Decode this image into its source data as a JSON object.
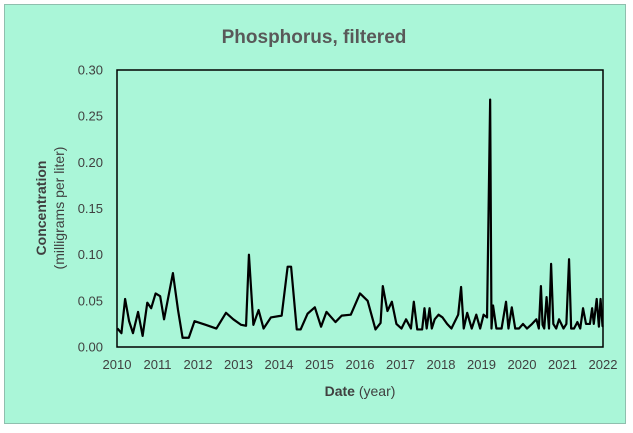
{
  "chart_data": {
    "type": "line",
    "title": "Phosphorus, filtered",
    "xlabel_bold": "Date",
    "xlabel_rest": " (year)",
    "ylabel_line1": "Concentration",
    "ylabel_line2": "(milligrams per liter)",
    "xlim": [
      2010,
      2022
    ],
    "ylim": [
      0,
      0.3
    ],
    "x_ticks": [
      "2010",
      "2011",
      "2012",
      "2013",
      "2014",
      "2015",
      "2016",
      "2017",
      "2018",
      "2019",
      "2020",
      "2021",
      "2022"
    ],
    "y_ticks": [
      "0.00",
      "0.05",
      "0.10",
      "0.15",
      "0.20",
      "0.25",
      "0.30"
    ],
    "grid": false,
    "colors": {
      "background": "#aaf6d8",
      "line": "#000000"
    },
    "series": [
      {
        "x": [
          "2010-01-05",
          "2010-02-10",
          "2010-03-15",
          "2010-04-20",
          "2010-05-25",
          "2010-07-10",
          "2010-08-20",
          "2010-10-01",
          "2010-11-05",
          "2010-12-15",
          "2011-01-25",
          "2011-03-01",
          "2011-05-20",
          "2011-07-05",
          "2011-08-15",
          "2011-10-10",
          "2011-12-01",
          "2012-03-10",
          "2012-06-15",
          "2012-09-10",
          "2012-11-15",
          "2013-01-25",
          "2013-03-10",
          "2013-04-05",
          "2013-05-15",
          "2013-07-01",
          "2013-08-15",
          "2013-10-20",
          "2014-01-25",
          "2014-03-20",
          "2014-04-20",
          "2014-06-10",
          "2014-07-15",
          "2014-09-15",
          "2014-11-20",
          "2015-01-15",
          "2015-03-05",
          "2015-05-25",
          "2015-07-20",
          "2015-10-10",
          "2016-01-01",
          "2016-03-10",
          "2016-05-20",
          "2016-07-05",
          "2016-07-25",
          "2016-09-05",
          "2016-10-15",
          "2016-11-25",
          "2017-01-10",
          "2017-02-20",
          "2017-04-05",
          "2017-05-01",
          "2017-06-01",
          "2017-07-15",
          "2017-08-05",
          "2017-08-25",
          "2017-09-20",
          "2017-10-10",
          "2017-11-05",
          "2017-12-10",
          "2018-01-15",
          "2018-02-25",
          "2018-04-05",
          "2018-06-05",
          "2018-07-01",
          "2018-07-25",
          "2018-08-25",
          "2018-10-05",
          "2018-11-15",
          "2018-12-20",
          "2019-01-20",
          "2019-02-20",
          "2019-03-20",
          "2019-04-01",
          "2019-04-15",
          "2019-05-15",
          "2019-07-01",
          "2019-08-10",
          "2019-09-01",
          "2019-10-01",
          "2019-11-01",
          "2019-12-05",
          "2020-01-10",
          "2020-02-15",
          "2020-04-01",
          "2020-05-10",
          "2020-06-01",
          "2020-06-20",
          "2020-07-05",
          "2020-07-20",
          "2020-08-10",
          "2020-09-01",
          "2020-09-20",
          "2020-10-10",
          "2020-11-05",
          "2020-12-01",
          "2021-01-10",
          "2021-02-05",
          "2021-03-01",
          "2021-03-20",
          "2021-04-15",
          "2021-05-15",
          "2021-06-10",
          "2021-07-05",
          "2021-08-01",
          "2021-09-05",
          "2021-09-25",
          "2021-10-10",
          "2021-11-05",
          "2021-11-25",
          "2021-12-10",
          "2021-12-28"
        ],
        "values": [
          0.02,
          0.015,
          0.052,
          0.028,
          0.015,
          0.038,
          0.012,
          0.048,
          0.042,
          0.058,
          0.055,
          0.03,
          0.08,
          0.04,
          0.01,
          0.01,
          0.028,
          0.024,
          0.02,
          0.037,
          0.03,
          0.024,
          0.023,
          0.1,
          0.024,
          0.04,
          0.02,
          0.032,
          0.034,
          0.087,
          0.087,
          0.019,
          0.019,
          0.036,
          0.043,
          0.022,
          0.038,
          0.027,
          0.034,
          0.035,
          0.058,
          0.05,
          0.019,
          0.026,
          0.066,
          0.039,
          0.049,
          0.025,
          0.02,
          0.03,
          0.02,
          0.049,
          0.019,
          0.019,
          0.042,
          0.02,
          0.042,
          0.02,
          0.03,
          0.035,
          0.032,
          0.025,
          0.02,
          0.035,
          0.065,
          0.02,
          0.037,
          0.02,
          0.035,
          0.02,
          0.035,
          0.032,
          0.268,
          0.02,
          0.045,
          0.02,
          0.02,
          0.049,
          0.02,
          0.043,
          0.02,
          0.02,
          0.025,
          0.02,
          0.025,
          0.03,
          0.02,
          0.066,
          0.024,
          0.02,
          0.054,
          0.02,
          0.09,
          0.025,
          0.02,
          0.03,
          0.02,
          0.025,
          0.095,
          0.02,
          0.02,
          0.027,
          0.02,
          0.042,
          0.025,
          0.025,
          0.042,
          0.025,
          0.052,
          0.022,
          0.052,
          0.022
        ]
      }
    ]
  }
}
